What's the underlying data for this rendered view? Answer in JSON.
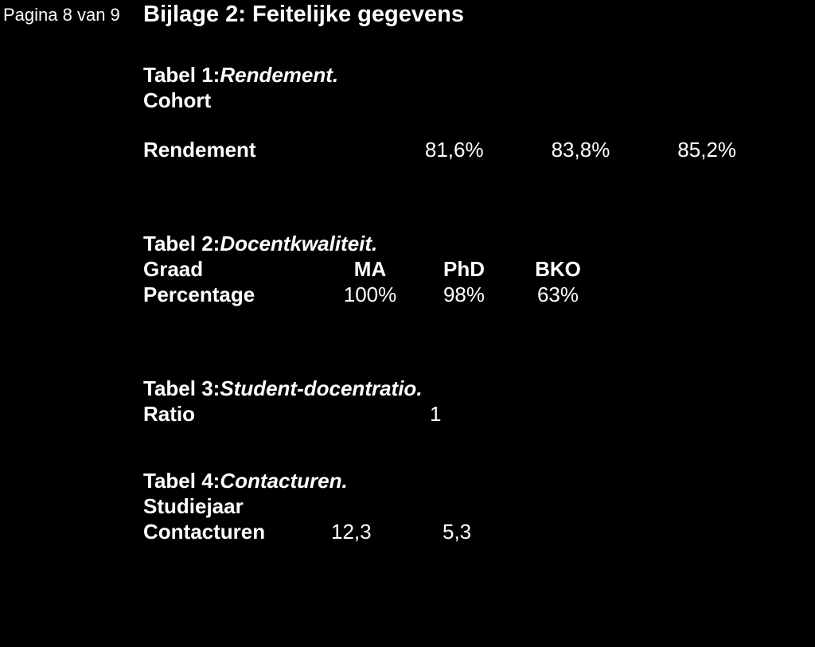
{
  "pageNumber": "Pagina 8 van 9",
  "appendixTitle": "Bijlage 2: Feitelijke gegevens",
  "table1": {
    "titlePrefix": "Tabel 1: ",
    "titleItalic": "Rendement.",
    "subheader": "Cohort",
    "rowLabel": "Rendement",
    "values": [
      "81,6%",
      "83,8%",
      "85,2%"
    ]
  },
  "table2": {
    "titlePrefix": "Tabel 2: ",
    "titleItalic": "Docentkwaliteit.",
    "headerLabel": "Graad",
    "headers": [
      "MA",
      "PhD",
      "BKO"
    ],
    "rowLabel": "Percentage",
    "values": [
      "100%",
      "98%",
      "63%"
    ]
  },
  "table3": {
    "titlePrefix": "Tabel 3: ",
    "titleItalic": "Student-docentratio.",
    "rowLabel": "Ratio",
    "value": "1"
  },
  "table4": {
    "titlePrefix": "Tabel 4: ",
    "titleItalic": "Contacturen.",
    "subheader": "Studiejaar",
    "rowLabel": "Contacturen",
    "values": [
      "12,3",
      "5,3"
    ]
  },
  "style": {
    "background": "#000000",
    "text": "#ffffff",
    "baseFontSize": 26,
    "titleFontSize": 29,
    "pageNumberFontSize": 22
  }
}
